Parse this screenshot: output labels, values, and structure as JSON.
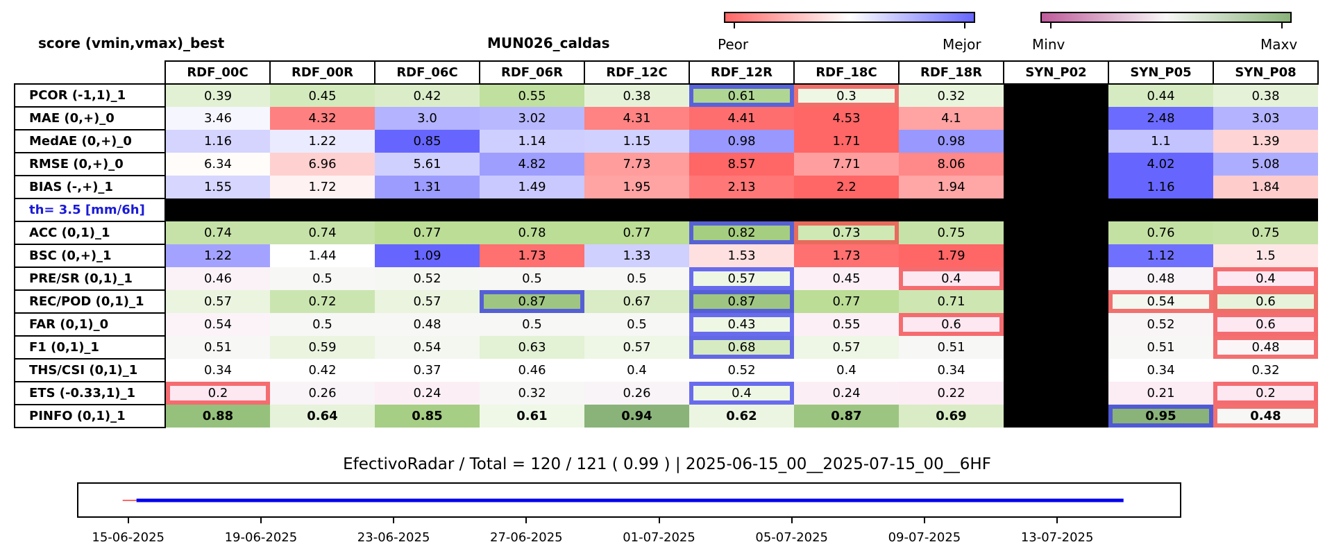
{
  "header": {
    "left_title": "score (vmin,vmax)_best",
    "center_title": "MUN026_caldas"
  },
  "colorbars": {
    "score": {
      "low_label": "Peor",
      "high_label": "Mejor",
      "colors": [
        "#ff6666",
        "#ffffff",
        "#6666ff"
      ]
    },
    "range": {
      "low_label": "Minv",
      "high_label": "Maxv",
      "colors": [
        "#bf5b9b",
        "#f7f7f7",
        "#8ab37a"
      ]
    }
  },
  "chart_data": {
    "type": "table",
    "columns": [
      "RDF_00C",
      "RDF_00R",
      "RDF_06C",
      "RDF_06R",
      "RDF_12C",
      "RDF_12R",
      "RDF_18C",
      "RDF_18R",
      "SYN_P02",
      "SYN_P05",
      "SYN_P08"
    ],
    "rows": [
      {
        "label": "PCOR (-1,1)_1",
        "values": [
          "0.39",
          "0.45",
          "0.42",
          "0.55",
          "0.38",
          "0.61",
          "0.3",
          "0.32",
          "",
          "0.44",
          "0.38"
        ],
        "colors": [
          "#e2f1d4",
          "#d3eabd",
          "#dbedc8",
          "#c0e09f",
          "#e5f2d8",
          "#b0d693",
          "#eef7e4",
          "#e9f4dd",
          "#000000",
          "#d6ebc1",
          "#e5f2d8"
        ],
        "highlights": {
          "5": "blue",
          "6": "red"
        }
      },
      {
        "label": "MAE (0,+)_0",
        "values": [
          "3.46",
          "4.32",
          "3.0",
          "3.02",
          "4.31",
          "4.41",
          "4.53",
          "4.1",
          "",
          "2.48",
          "3.03"
        ],
        "colors": [
          "#f6f6ff",
          "#ff8080",
          "#b3b3ff",
          "#b8b8ff",
          "#ff8383",
          "#ff6e6e",
          "#ff6666",
          "#ffa3a3",
          "#000000",
          "#6b6bff",
          "#b3b3ff"
        ]
      },
      {
        "label": "MedAE (0,+)_0",
        "values": [
          "1.16",
          "1.22",
          "0.85",
          "1.14",
          "1.15",
          "0.98",
          "1.71",
          "0.98",
          "",
          "1.1",
          "1.39"
        ],
        "colors": [
          "#d4d4ff",
          "#ebebff",
          "#6666ff",
          "#cfcfff",
          "#d1d1ff",
          "#9898ff",
          "#ff6666",
          "#9898ff",
          "#000000",
          "#c3c3ff",
          "#ffd4d4"
        ]
      },
      {
        "label": "RMSE (0,+)_0",
        "values": [
          "6.34",
          "6.96",
          "5.61",
          "4.82",
          "7.73",
          "8.57",
          "7.71",
          "8.06",
          "",
          "4.02",
          "5.08"
        ],
        "colors": [
          "#fffcfa",
          "#ffd0d0",
          "#d0d0ff",
          "#9e9eff",
          "#ff9c9c",
          "#ff6666",
          "#ff9e9e",
          "#ff8888",
          "#000000",
          "#6666ff",
          "#adadff"
        ]
      },
      {
        "label": "BIAS (-,+)_1",
        "values": [
          "1.55",
          "1.72",
          "1.31",
          "1.49",
          "1.95",
          "2.13",
          "2.2",
          "1.94",
          "",
          "1.16",
          "1.84"
        ],
        "colors": [
          "#d6d6ff",
          "#fff2f2",
          "#9c9cff",
          "#c9c9ff",
          "#ffa3a3",
          "#ff7777",
          "#ff6666",
          "#ffa6a6",
          "#000000",
          "#6666ff",
          "#ffcccc"
        ]
      },
      {
        "label": "th= 3.5 [mm/6h]",
        "separator": true
      },
      {
        "label": "ACC (0,1)_1",
        "values": [
          "0.74",
          "0.74",
          "0.77",
          "0.78",
          "0.77",
          "0.82",
          "0.73",
          "0.75",
          "",
          "0.76",
          "0.75"
        ],
        "colors": [
          "#c6e2a8",
          "#c6e2a8",
          "#bbdd96",
          "#bbdd96",
          "#bbdd96",
          "#a6ce80",
          "#cfe8b4",
          "#c6e2a8",
          "#000000",
          "#c4e1a4",
          "#c6e2a8"
        ],
        "highlights": {
          "5": "blue",
          "6": "red"
        }
      },
      {
        "label": "BSC (0,+)_1",
        "values": [
          "1.22",
          "1.44",
          "1.09",
          "1.73",
          "1.33",
          "1.53",
          "1.73",
          "1.79",
          "",
          "1.12",
          "1.5"
        ],
        "colors": [
          "#a3a3ff",
          "#ffffff",
          "#6666ff",
          "#ff7070",
          "#d0d0ff",
          "#ffe0e0",
          "#ff7070",
          "#ff6666",
          "#000000",
          "#7070ff",
          "#ffe6e6"
        ]
      },
      {
        "label": "PRE/SR (0,1)_1",
        "values": [
          "0.46",
          "0.5",
          "0.52",
          "0.5",
          "0.5",
          "0.57",
          "0.45",
          "0.4",
          "",
          "0.48",
          "0.4"
        ],
        "colors": [
          "#fbf2f8",
          "#f7f7f6",
          "#f5f7f2",
          "#f7f7f6",
          "#f7f7f6",
          "#eef7e4",
          "#fcf0f6",
          "#fde8f2",
          "#000000",
          "#f9f4f7",
          "#fde8f2"
        ],
        "highlights": {
          "5": "blue",
          "7": "red",
          "10": "red"
        }
      },
      {
        "label": "REC/POD (0,1)_1",
        "values": [
          "0.57",
          "0.72",
          "0.57",
          "0.87",
          "0.67",
          "0.87",
          "0.77",
          "0.71",
          "",
          "0.54",
          "0.6"
        ],
        "colors": [
          "#eaf4df",
          "#cbe5b0",
          "#eaf4df",
          "#9fc582",
          "#d9ecc5",
          "#9fc582",
          "#bbdd96",
          "#cde6b2",
          "#000000",
          "#f3f7ee",
          "#e6f2da"
        ],
        "highlights": {
          "3": "blue",
          "5": "blue",
          "9": "red",
          "10": "red"
        }
      },
      {
        "label": "FAR (0,1)_0",
        "values": [
          "0.54",
          "0.5",
          "0.48",
          "0.5",
          "0.5",
          "0.43",
          "0.55",
          "0.6",
          "",
          "0.52",
          "0.6"
        ],
        "colors": [
          "#fbf3f8",
          "#f7f7f6",
          "#f7f7f5",
          "#f7f7f6",
          "#f7f7f6",
          "#eef7e4",
          "#fcf0f6",
          "#fde8f2",
          "#000000",
          "#f9f5f7",
          "#fde8f2"
        ],
        "highlights": {
          "5": "blue",
          "7": "red",
          "10": "red"
        }
      },
      {
        "label": "F1 (0,1)_1",
        "values": [
          "0.51",
          "0.59",
          "0.54",
          "0.63",
          "0.57",
          "0.68",
          "0.57",
          "0.51",
          "",
          "0.51",
          "0.48"
        ],
        "colors": [
          "#f7f7f6",
          "#eaf4df",
          "#f4f7f0",
          "#e3f1d4",
          "#eef6e6",
          "#d6ebc1",
          "#eef6e6",
          "#f7f7f6",
          "#000000",
          "#f7f7f6",
          "#fbf5f8"
        ],
        "highlights": {
          "5": "blue",
          "10": "red"
        }
      },
      {
        "label": "THS/CSI (0,1)_1",
        "values": [
          "0.34",
          "0.42",
          "0.37",
          "0.46",
          "0.4",
          "0.52",
          "0.4",
          "0.34",
          "",
          "0.34",
          "0.32"
        ],
        "colors": [
          "#ffffff",
          "#ffffff",
          "#ffffff",
          "#ffffff",
          "#ffffff",
          "#ffffff",
          "#ffffff",
          "#ffffff",
          "#000000",
          "#ffffff",
          "#ffffff"
        ]
      },
      {
        "label": "ETS (-0.33,1)_1",
        "values": [
          "0.2",
          "0.26",
          "0.24",
          "0.32",
          "0.26",
          "0.4",
          "0.24",
          "0.22",
          "",
          "0.21",
          "0.2"
        ],
        "colors": [
          "#fde8f2",
          "#f9f4f7",
          "#fbeff5",
          "#f7f7f6",
          "#f9f4f7",
          "#eef7e4",
          "#fbeff5",
          "#fcecf4",
          "#000000",
          "#fcecf4",
          "#fde8f2"
        ],
        "highlights": {
          "0": "red",
          "5": "blue",
          "10": "red"
        }
      },
      {
        "label": "PINFO (0,1)_1",
        "bold": true,
        "values": [
          "0.88",
          "0.64",
          "0.85",
          "0.61",
          "0.94",
          "0.62",
          "0.87",
          "0.69",
          "",
          "0.95",
          "0.48"
        ],
        "colors": [
          "#96c17c",
          "#e6f2da",
          "#a6ce85",
          "#eff7e6",
          "#8ab37a",
          "#ebf5e1",
          "#9cc581",
          "#d9ecc5",
          "#000000",
          "#8ab37a",
          "#f7f7f6"
        ],
        "highlights": {
          "9": "blue",
          "10": "red"
        }
      }
    ],
    "footer": "EfectivoRadar / Total  =  120 / 121 ( 0.99 ) | 2025-06-15_00__2025-07-15_00__6HF",
    "timeline": {
      "x_ticks": [
        "15-06-2025",
        "19-06-2025",
        "23-06-2025",
        "27-06-2025",
        "01-07-2025",
        "05-07-2025",
        "09-07-2025",
        "13-07-2025"
      ],
      "x_tick_days": [
        0,
        4,
        8,
        12,
        16,
        20,
        24,
        28
      ],
      "red_span_days": [
        0.0,
        0.25
      ],
      "blue_span_days": [
        0.25,
        30.0
      ],
      "xlim_days": [
        -1.5,
        31.7
      ],
      "colors": {
        "red": "#ff6666",
        "blue": "#0000ee"
      }
    }
  }
}
